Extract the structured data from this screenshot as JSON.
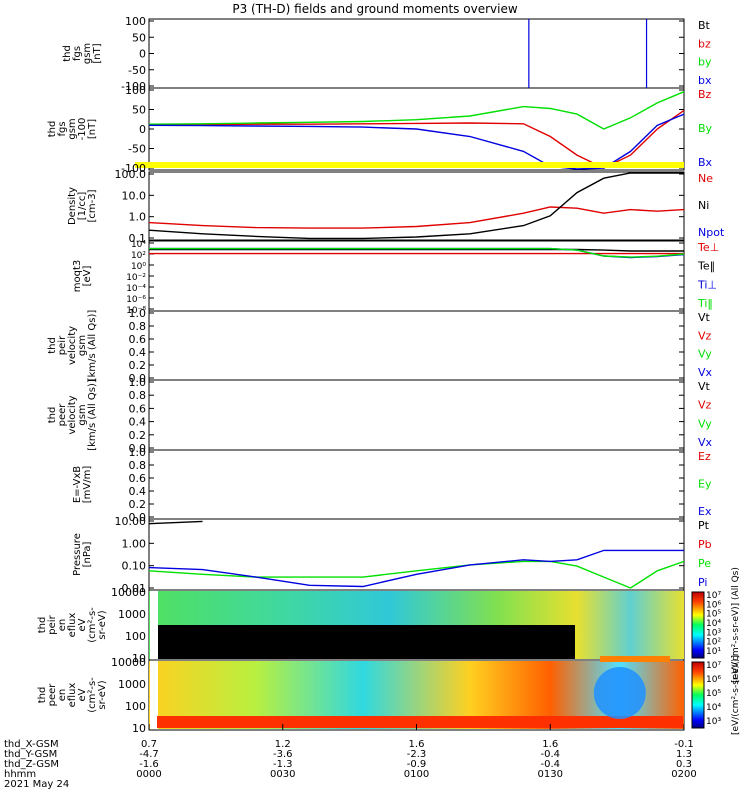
{
  "title": "P3 (TH-D) fields and ground moments overview",
  "colors": {
    "black": "#000000",
    "red": "#e00000",
    "green": "#00e000",
    "blue": "#0000e0",
    "yellow": "#ffff00"
  },
  "panels": [
    {
      "id": "fgs",
      "ylabel": [
        "thd",
        "fgs",
        "gsm",
        "[nT]"
      ],
      "ytick_labels": [
        "100",
        "50",
        "0",
        "-50",
        "-100"
      ],
      "legend": [
        {
          "label": "Bt",
          "color": "#000000"
        },
        {
          "label": "bz",
          "color": "#e00000"
        },
        {
          "label": "by",
          "color": "#00e000"
        },
        {
          "label": "bx",
          "color": "#0000e0"
        }
      ]
    },
    {
      "id": "fgs-clip",
      "ylabel": [
        "thd",
        "fgs",
        "gsm",
        "-100",
        "[nT]"
      ],
      "ytick_labels": [
        "100",
        "50",
        "0",
        "-50",
        "-100"
      ],
      "legend": [
        {
          "label": "Bz",
          "color": "#e00000"
        },
        {
          "label": "By",
          "color": "#00e000"
        },
        {
          "label": "Bx",
          "color": "#0000e0"
        }
      ]
    },
    {
      "id": "density",
      "ylabel": [
        "Density",
        "[1/cc]",
        "[cm-3]"
      ],
      "ytick_labels": [
        "100.0",
        "10.0",
        "1.0",
        "0.1"
      ],
      "legend": [
        {
          "label": "Ne",
          "color": "#e00000"
        },
        {
          "label": "Ni",
          "color": "#000000"
        },
        {
          "label": "Npot",
          "color": "#0000e0"
        }
      ]
    },
    {
      "id": "temp",
      "ylabel": [
        "moqt3",
        "[eV]"
      ],
      "ytick_labels": [
        "10⁴",
        "10²",
        "10⁰",
        "10⁻²",
        "10⁻⁴",
        "10⁻⁶",
        "10⁻⁸"
      ],
      "legend": [
        {
          "label": "Te⊥",
          "color": "#e00000"
        },
        {
          "label": "Te‖",
          "color": "#000000"
        },
        {
          "label": "Ti⊥",
          "color": "#0000e0"
        },
        {
          "label": "Ti‖",
          "color": "#00e000"
        }
      ]
    },
    {
      "id": "vi",
      "ylabel": [
        "thd",
        "peir",
        "velocity",
        "gsm",
        "[km/s (All Qs)]"
      ],
      "ytick_labels": [
        "1.0",
        "0.8",
        "0.6",
        "0.4",
        "0.2",
        "0.0"
      ],
      "legend": [
        {
          "label": "Vt",
          "color": "#000000"
        },
        {
          "label": "Vz",
          "color": "#e00000"
        },
        {
          "label": "Vy",
          "color": "#00e000"
        },
        {
          "label": "Vx",
          "color": "#0000e0"
        }
      ]
    },
    {
      "id": "ve",
      "ylabel": [
        "thd",
        "peer",
        "velocity",
        "gsm",
        "[km/s (All Qs)]"
      ],
      "ytick_labels": [
        "1.0",
        "0.8",
        "0.6",
        "0.4",
        "0.2",
        "0.0"
      ],
      "legend": [
        {
          "label": "Vt",
          "color": "#000000"
        },
        {
          "label": "Vz",
          "color": "#e00000"
        },
        {
          "label": "Vy",
          "color": "#00e000"
        },
        {
          "label": "Vx",
          "color": "#0000e0"
        }
      ]
    },
    {
      "id": "efield",
      "ylabel": [
        "E=-VxB",
        "[mV/m]"
      ],
      "ytick_labels": [
        "1.0",
        "0.8",
        "0.6",
        "0.4",
        "0.2",
        "0.0"
      ],
      "legend": [
        {
          "label": "Ez",
          "color": "#e00000"
        },
        {
          "label": "Ey",
          "color": "#00e000"
        },
        {
          "label": "Ex",
          "color": "#0000e0"
        }
      ]
    },
    {
      "id": "pressure",
      "ylabel": [
        "Pressure",
        "[nPa]"
      ],
      "ytick_labels": [
        "10.00",
        "1.00",
        "0.10",
        "0.01"
      ],
      "legend": [
        {
          "label": "Pt",
          "color": "#000000"
        },
        {
          "label": "Pb",
          "color": "#e00000"
        },
        {
          "label": "Pe",
          "color": "#00e000"
        },
        {
          "label": "Pi",
          "color": "#0000e0"
        }
      ]
    },
    {
      "id": "ion-spec",
      "ylabel": [
        "thd",
        "peir",
        "en",
        "eflux",
        "eV",
        "(cm²-s-",
        "sr-eV)"
      ],
      "ytick_labels": [
        "10000",
        "1000",
        "100",
        "10"
      ],
      "legend": []
    },
    {
      "id": "elec-spec",
      "ylabel": [
        "thd",
        "peer",
        "en",
        "eflux",
        "eV",
        "(cm²-s-",
        "sr-eV)"
      ],
      "ytick_labels": [
        "10000",
        "1000",
        "100",
        "10"
      ],
      "legend": []
    }
  ],
  "colorbars": [
    {
      "tick_labels": [
        "10⁷",
        "10⁶",
        "10⁵",
        "10⁴",
        "10³",
        "10²",
        "10¹"
      ],
      "label": "[eV/(cm²-s-sr-eV)] (All Qs)"
    },
    {
      "tick_labels": [
        "10⁷",
        "10⁶",
        "10⁵",
        "10⁴",
        "10³"
      ],
      "label": "[eV/(cm²-s-sr-eV)]"
    }
  ],
  "xaxis": {
    "row_labels": [
      "thd_X-GSM",
      "thd_Y-GSM",
      "thd_Z-GSM",
      "hhmm",
      "2021 May 24"
    ],
    "x_gsm": [
      "0.7",
      "1.2",
      "1.6",
      "1.6",
      "-0.1"
    ],
    "y_gsm": [
      "-4.7",
      "-3.6",
      "-2.3",
      "-0.4",
      "1.3"
    ],
    "z_gsm": [
      "-1.6",
      "-1.3",
      "-0.9",
      "-0.4",
      "0.3"
    ],
    "hhmm": [
      "0000",
      "0030",
      "0100",
      "0130",
      "0200"
    ]
  },
  "chart_data": [
    {
      "type": "line",
      "title": "thd fgs gsm",
      "ylabel": "[nT]",
      "ylim": [
        -100,
        100
      ],
      "x": [
        0,
        10,
        20,
        30,
        40,
        50,
        60,
        70,
        75,
        80,
        85,
        90,
        95,
        100
      ],
      "series": [
        {
          "name": "bx",
          "values": [
            null,
            null,
            null,
            null,
            null,
            null,
            null,
            null,
            null,
            null,
            null,
            null,
            null,
            null
          ]
        }
      ],
      "note_vertical_lines_at_x": [
        71,
        93
      ]
    },
    {
      "type": "line",
      "title": "thd fgs gsm -100",
      "ylabel": "[nT]",
      "ylim": [
        -120,
        100
      ],
      "x": [
        0,
        10,
        20,
        30,
        40,
        50,
        60,
        70,
        75,
        80,
        85,
        90,
        95,
        100
      ],
      "series": [
        {
          "name": "Bz",
          "values": [
            2,
            2,
            3,
            3,
            4,
            5,
            6,
            4,
            -30,
            -80,
            -115,
            -80,
            -10,
            40
          ]
        },
        {
          "name": "By",
          "values": [
            3,
            4,
            6,
            8,
            10,
            15,
            25,
            50,
            45,
            30,
            -10,
            20,
            60,
            90
          ]
        },
        {
          "name": "Bx",
          "values": [
            0,
            -1,
            -2,
            -3,
            -5,
            -10,
            -30,
            -70,
            -110,
            -130,
            -115,
            -70,
            0,
            30
          ]
        }
      ]
    },
    {
      "type": "line",
      "title": "Density",
      "ylabel": "[1/cc] [cm-3]",
      "ylim": [
        0.1,
        200
      ],
      "yscale": "log",
      "x": [
        0,
        10,
        20,
        30,
        40,
        50,
        60,
        70,
        75,
        80,
        85,
        90,
        95,
        100
      ],
      "series": [
        {
          "name": "Ne",
          "values": [
            0.7,
            0.5,
            0.4,
            0.38,
            0.38,
            0.45,
            0.7,
            2.0,
            4.0,
            3.5,
            2.0,
            3.0,
            2.5,
            3.0
          ]
        },
        {
          "name": "Ni",
          "values": [
            0.3,
            0.2,
            0.15,
            0.12,
            0.12,
            0.14,
            0.2,
            0.5,
            1.5,
            20,
            100,
            200,
            200,
            200
          ]
        }
      ]
    },
    {
      "type": "line",
      "title": "moqt3",
      "ylabel": "[eV]",
      "ylim": [
        1e-09,
        100000.0
      ],
      "yscale": "log",
      "x": [
        0,
        20,
        40,
        60,
        75,
        80,
        85,
        90,
        95,
        100
      ],
      "series": [
        {
          "name": "Te⊥",
          "values": [
            300,
            300,
            300,
            300,
            300,
            300,
            300,
            300,
            300,
            300
          ]
        },
        {
          "name": "Te‖",
          "values": [
            2000,
            2000,
            2000,
            2000,
            2000,
            2000,
            1500,
            1000,
            1000,
            1000
          ]
        },
        {
          "name": "Ti⊥",
          "values": [
            3000,
            3000,
            3000,
            3000,
            3000,
            1500,
            100,
            50,
            80,
            200
          ]
        },
        {
          "name": "Ti‖",
          "values": [
            3000,
            3000,
            3000,
            3000,
            3000,
            1500,
            100,
            60,
            90,
            250
          ]
        }
      ]
    },
    {
      "type": "line",
      "title": "thd peir velocity gsm",
      "ylabel": "[km/s (All Qs)]",
      "ylim": [
        0,
        1
      ],
      "series": []
    },
    {
      "type": "line",
      "title": "thd peer velocity gsm",
      "ylabel": "[km/s (All Qs)]",
      "ylim": [
        0,
        1
      ],
      "series": []
    },
    {
      "type": "line",
      "title": "E=-VxB",
      "ylabel": "[mV/m]",
      "ylim": [
        0,
        1
      ],
      "series": []
    },
    {
      "type": "line",
      "title": "Pressure",
      "ylabel": "[nPa]",
      "ylim": [
        0.003,
        100
      ],
      "yscale": "log",
      "x": [
        0,
        10,
        20,
        30,
        40,
        50,
        60,
        70,
        75,
        80,
        85,
        90,
        95,
        100
      ],
      "series": [
        {
          "name": "Pt",
          "values": [
            50,
            70,
            null,
            null,
            null,
            null,
            null,
            null,
            null,
            null,
            null,
            null,
            null,
            null
          ]
        },
        {
          "name": "Pe",
          "values": [
            0.05,
            0.03,
            0.02,
            0.02,
            0.02,
            0.05,
            0.12,
            0.2,
            0.2,
            0.1,
            0.02,
            0.004,
            0.05,
            0.2
          ]
        },
        {
          "name": "Pi",
          "values": [
            0.08,
            0.06,
            0.02,
            0.006,
            0.005,
            0.03,
            0.12,
            0.25,
            0.2,
            0.25,
            1.0,
            1.0,
            1.0,
            1.0
          ]
        }
      ]
    },
    {
      "type": "heatmap",
      "title": "thd peir en eflux",
      "ylabel": "eV",
      "yscale": "log",
      "ylim": [
        7,
        20000
      ],
      "zlim": [
        10,
        10000000.0
      ]
    },
    {
      "type": "heatmap",
      "title": "thd peer en eflux",
      "ylabel": "eV",
      "yscale": "log",
      "ylim": [
        7,
        20000
      ],
      "zlim": [
        1000,
        10000000.0
      ]
    }
  ]
}
